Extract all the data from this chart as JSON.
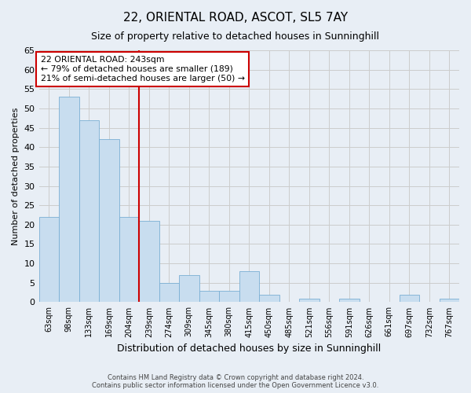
{
  "title": "22, ORIENTAL ROAD, ASCOT, SL5 7AY",
  "subtitle": "Size of property relative to detached houses in Sunninghill",
  "xlabel": "Distribution of detached houses by size in Sunninghill",
  "ylabel": "Number of detached properties",
  "footer_line1": "Contains HM Land Registry data © Crown copyright and database right 2024.",
  "footer_line2": "Contains public sector information licensed under the Open Government Licence v3.0.",
  "bin_labels": [
    "63sqm",
    "98sqm",
    "133sqm",
    "169sqm",
    "204sqm",
    "239sqm",
    "274sqm",
    "309sqm",
    "345sqm",
    "380sqm",
    "415sqm",
    "450sqm",
    "485sqm",
    "521sqm",
    "556sqm",
    "591sqm",
    "626sqm",
    "661sqm",
    "697sqm",
    "732sqm",
    "767sqm"
  ],
  "bar_heights": [
    22,
    53,
    47,
    42,
    22,
    21,
    5,
    7,
    3,
    3,
    8,
    2,
    0,
    1,
    0,
    1,
    0,
    0,
    2,
    0,
    1
  ],
  "bar_color": "#c8ddef",
  "bar_edge_color": "#7aafd4",
  "highlight_line_color": "#cc0000",
  "annotation_box_text": "22 ORIENTAL ROAD: 243sqm\n← 79% of detached houses are smaller (189)\n21% of semi-detached houses are larger (50) →",
  "annotation_box_edge_color": "#cc0000",
  "annotation_box_face_color": "#ffffff",
  "ylim": [
    0,
    65
  ],
  "yticks": [
    0,
    5,
    10,
    15,
    20,
    25,
    30,
    35,
    40,
    45,
    50,
    55,
    60,
    65
  ],
  "grid_color": "#cccccc",
  "bg_color": "#e8eef5"
}
